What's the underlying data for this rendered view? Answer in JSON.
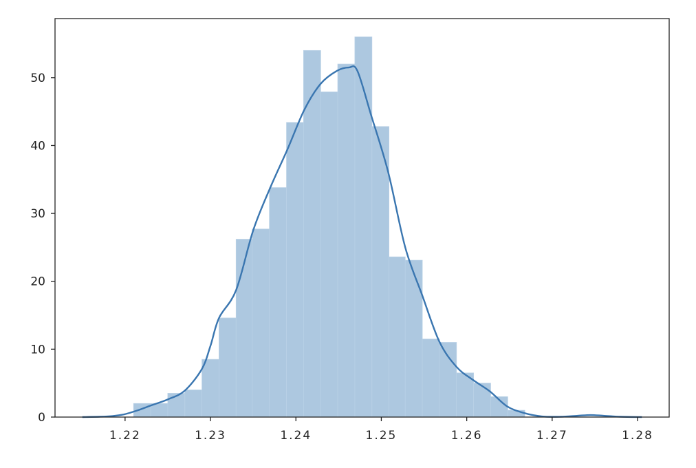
{
  "chart_data": {
    "type": "bar",
    "subtype": "histogram-with-kde",
    "title": "",
    "xlabel": "",
    "ylabel": "",
    "xlim": [
      1.2118,
      1.2837
    ],
    "ylim": [
      0,
      58.7
    ],
    "grid": false,
    "x_ticks": [
      "1.22",
      "1.23",
      "1.24",
      "1.25",
      "1.26",
      "1.27",
      "1.28"
    ],
    "x_tick_values": [
      1.22,
      1.23,
      1.24,
      1.25,
      1.26,
      1.27,
      1.28
    ],
    "y_ticks": [
      "0",
      "10",
      "20",
      "30",
      "40",
      "50"
    ],
    "y_tick_values": [
      0,
      10,
      20,
      30,
      40,
      50
    ],
    "bin_edges": [
      1.221,
      1.223,
      1.225,
      1.227,
      1.229,
      1.231,
      1.233,
      1.2349,
      1.2369,
      1.2389,
      1.2409,
      1.2429,
      1.2449,
      1.2469,
      1.2489,
      1.2509,
      1.2528,
      1.2548,
      1.2568,
      1.2588,
      1.2608,
      1.2628,
      1.2648,
      1.2668
    ],
    "values": [
      2.0,
      2.0,
      3.5,
      4.0,
      8.5,
      14.6,
      26.2,
      27.7,
      33.8,
      43.4,
      54.0,
      47.9,
      52.0,
      56.0,
      42.8,
      23.6,
      23.1,
      11.5,
      11.0,
      6.5,
      5.0,
      3.0,
      1.0
    ],
    "kde": {
      "x": [
        1.215,
        1.217,
        1.2185,
        1.2199,
        1.2215,
        1.223,
        1.225,
        1.227,
        1.229,
        1.23,
        1.231,
        1.233,
        1.235,
        1.237,
        1.239,
        1.241,
        1.2429,
        1.2448,
        1.2462,
        1.2472,
        1.2488,
        1.2508,
        1.2528,
        1.2548,
        1.2568,
        1.2588,
        1.2607,
        1.2627,
        1.2647,
        1.2667,
        1.2688,
        1.271,
        1.273,
        1.2745,
        1.276,
        1.278,
        1.2805
      ],
      "y": [
        0,
        0.05,
        0.15,
        0.4,
        1.0,
        1.7,
        2.6,
        3.9,
        7.1,
        10.5,
        14.6,
        18.7,
        27.5,
        33.8,
        39.4,
        45.3,
        49.1,
        51.0,
        51.5,
        51.0,
        44.5,
        36.1,
        25.0,
        17.9,
        11.1,
        7.4,
        5.5,
        3.8,
        1.6,
        0.6,
        0.1,
        0.05,
        0.2,
        0.3,
        0.2,
        0.05,
        0
      ]
    },
    "colors": {
      "bars": "#adc8e0",
      "kde_line": "#3a76b0",
      "axes": "#222222"
    }
  }
}
